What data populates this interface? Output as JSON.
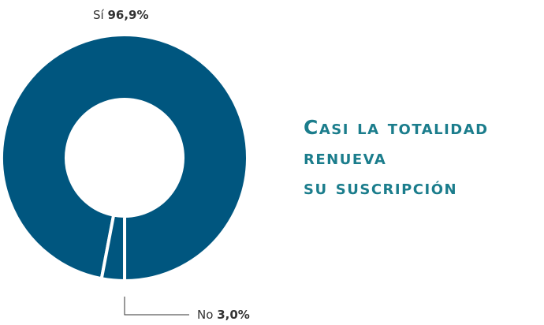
{
  "chart_data": {
    "type": "donut",
    "title": [
      "Casi la totalidad",
      "renueva",
      "su suscripción"
    ],
    "categories": [
      "Sí",
      "No"
    ],
    "values": [
      96.9,
      3.0
    ],
    "value_labels": [
      "96,9%",
      "3,0%"
    ],
    "colors": [
      "#00567f",
      "#00567f"
    ]
  }
}
